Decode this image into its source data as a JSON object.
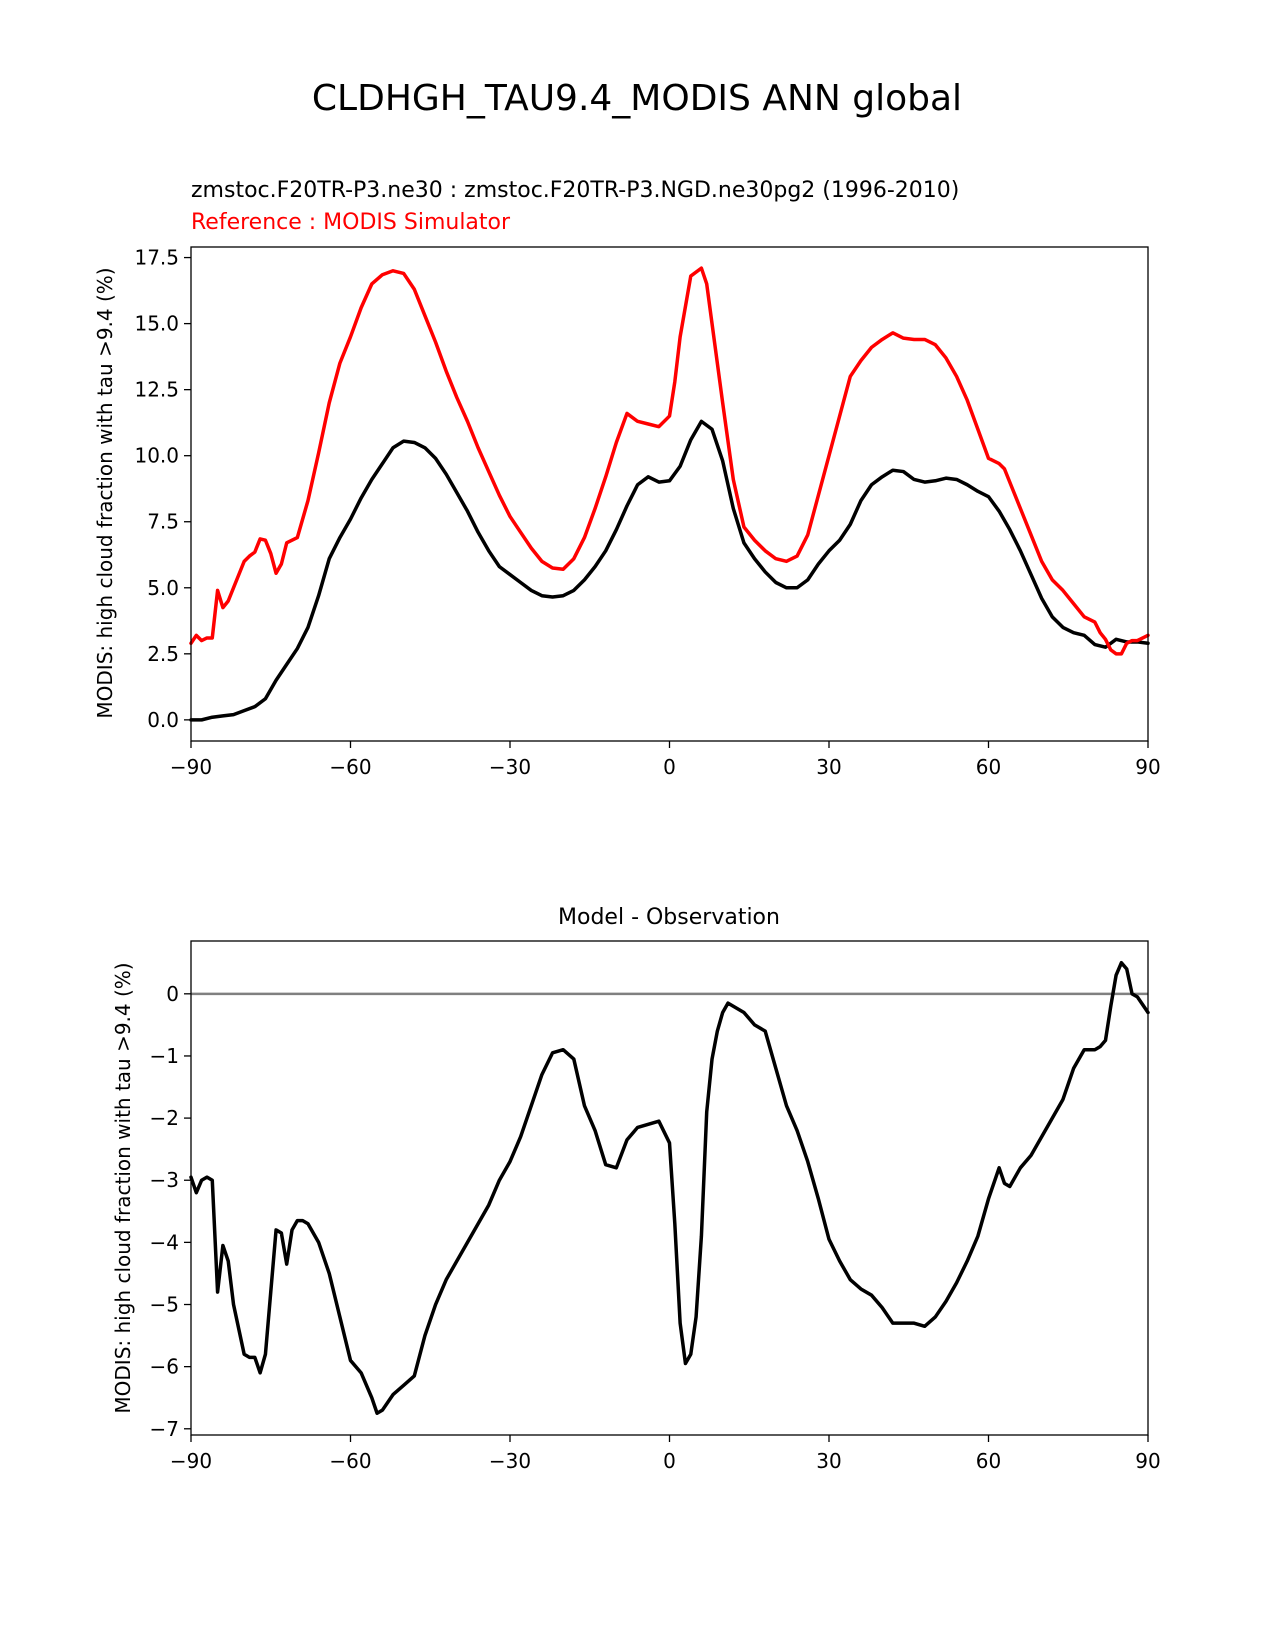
{
  "figure": {
    "title": "CLDHGH_TAU9.4_MODIS ANN global"
  },
  "colors": {
    "test_series": "#000000",
    "reference_series": "#ff0000",
    "zero_line": "#808080",
    "axes": "#000000",
    "background": "#ffffff"
  },
  "chart_data": [
    {
      "type": "line",
      "subtitle_test": "zmstoc.F20TR-P3.ne30 : zmstoc.F20TR-P3.NGD.ne30pg2 (1996-2010)",
      "subtitle_reference": "Reference : MODIS Simulator",
      "xlabel": "",
      "ylabel": "MODIS: high cloud fraction with tau >9.4 (%)",
      "xlim": [
        -90,
        90
      ],
      "ylim": [
        -0.8,
        17.9
      ],
      "xticks": [
        -90,
        -60,
        -30,
        0,
        30,
        60,
        90
      ],
      "xtick_labels": [
        "−90",
        "−60",
        "−30",
        "0",
        "30",
        "60",
        "90"
      ],
      "yticks": [
        0.0,
        2.5,
        5.0,
        7.5,
        10.0,
        12.5,
        15.0,
        17.5
      ],
      "ytick_labels": [
        "0.0",
        "2.5",
        "5.0",
        "7.5",
        "10.0",
        "12.5",
        "15.0",
        "17.5"
      ],
      "grid": false,
      "legend": "none",
      "series": [
        {
          "role": "test",
          "color": "#000000",
          "x": [
            -90,
            -88,
            -86,
            -84,
            -82,
            -80,
            -78,
            -76,
            -74,
            -72,
            -70,
            -68,
            -66,
            -64,
            -62,
            -60,
            -58,
            -56,
            -54,
            -52,
            -50,
            -48,
            -46,
            -44,
            -42,
            -40,
            -38,
            -36,
            -34,
            -32,
            -30,
            -28,
            -26,
            -24,
            -22,
            -20,
            -18,
            -16,
            -14,
            -12,
            -10,
            -8,
            -6,
            -4,
            -2,
            0,
            2,
            4,
            6,
            8,
            10,
            12,
            14,
            16,
            18,
            20,
            22,
            24,
            26,
            28,
            30,
            32,
            34,
            36,
            38,
            40,
            42,
            44,
            46,
            48,
            50,
            52,
            54,
            56,
            58,
            60,
            62,
            64,
            66,
            68,
            70,
            72,
            74,
            76,
            78,
            80,
            82,
            84,
            86,
            88,
            90
          ],
          "y": [
            0.0,
            0.0,
            0.1,
            0.15,
            0.2,
            0.35,
            0.5,
            0.8,
            1.5,
            2.1,
            2.7,
            3.5,
            4.7,
            6.1,
            6.9,
            7.6,
            8.4,
            9.1,
            9.7,
            10.3,
            10.55,
            10.5,
            10.3,
            9.9,
            9.3,
            8.6,
            7.9,
            7.1,
            6.4,
            5.8,
            5.5,
            5.2,
            4.9,
            4.7,
            4.65,
            4.7,
            4.9,
            5.3,
            5.8,
            6.4,
            7.2,
            8.1,
            8.9,
            9.2,
            9.0,
            9.05,
            9.6,
            10.6,
            11.3,
            11.0,
            9.8,
            8.0,
            6.7,
            6.1,
            5.6,
            5.2,
            5.0,
            5.0,
            5.3,
            5.9,
            6.4,
            6.8,
            7.4,
            8.3,
            8.9,
            9.2,
            9.45,
            9.4,
            9.1,
            9.0,
            9.05,
            9.15,
            9.1,
            8.9,
            8.65,
            8.45,
            7.9,
            7.2,
            6.4,
            5.5,
            4.6,
            3.9,
            3.5,
            3.3,
            3.2,
            2.85,
            2.75,
            3.05,
            2.95,
            2.95,
            2.9
          ]
        },
        {
          "role": "reference",
          "color": "#ff0000",
          "x": [
            -90,
            -89,
            -88,
            -87,
            -86,
            -85,
            -84,
            -83,
            -82,
            -80,
            -79,
            -78,
            -77,
            -76,
            -75,
            -74,
            -73,
            -72,
            -70,
            -68,
            -66,
            -64,
            -62,
            -60,
            -58,
            -56,
            -54,
            -52,
            -50,
            -48,
            -46,
            -44,
            -42,
            -40,
            -38,
            -36,
            -34,
            -32,
            -30,
            -28,
            -26,
            -24,
            -22,
            -20,
            -18,
            -16,
            -14,
            -12,
            -10,
            -8,
            -6,
            -4,
            -2,
            0,
            1,
            2,
            4,
            6,
            7,
            8,
            10,
            12,
            14,
            16,
            18,
            20,
            22,
            24,
            26,
            28,
            30,
            32,
            34,
            36,
            38,
            40,
            42,
            44,
            46,
            48,
            50,
            52,
            54,
            56,
            58,
            60,
            62,
            63,
            64,
            66,
            68,
            70,
            72,
            74,
            76,
            78,
            80,
            81,
            82,
            83,
            84,
            85,
            86,
            87,
            88,
            90
          ],
          "y": [
            2.9,
            3.2,
            3.0,
            3.1,
            3.1,
            4.9,
            4.25,
            4.5,
            5.0,
            6.0,
            6.2,
            6.35,
            6.85,
            6.8,
            6.3,
            5.55,
            5.9,
            6.7,
            6.9,
            8.3,
            10.1,
            12.0,
            13.5,
            14.5,
            15.6,
            16.5,
            16.85,
            17.0,
            16.9,
            16.3,
            15.3,
            14.3,
            13.2,
            12.2,
            11.3,
            10.3,
            9.4,
            8.5,
            7.7,
            7.1,
            6.5,
            6.0,
            5.75,
            5.7,
            6.1,
            6.9,
            8.0,
            9.2,
            10.5,
            11.6,
            11.3,
            11.2,
            11.1,
            11.5,
            12.8,
            14.5,
            16.8,
            17.1,
            16.5,
            15.0,
            12.0,
            9.1,
            7.3,
            6.8,
            6.4,
            6.1,
            6.0,
            6.2,
            7.0,
            8.5,
            10.0,
            11.5,
            13.0,
            13.6,
            14.1,
            14.4,
            14.65,
            14.45,
            14.4,
            14.4,
            14.2,
            13.7,
            13.0,
            12.1,
            11.0,
            9.9,
            9.7,
            9.5,
            9.0,
            8.0,
            7.0,
            6.0,
            5.3,
            4.9,
            4.4,
            3.9,
            3.7,
            3.3,
            3.05,
            2.65,
            2.5,
            2.5,
            2.9,
            3.0,
            3.0,
            3.2
          ]
        }
      ]
    },
    {
      "type": "line",
      "title": "Model - Observation",
      "xlabel": "",
      "ylabel": "MODIS: high cloud fraction with tau >9.4 (%)",
      "xlim": [
        -90,
        90
      ],
      "ylim": [
        -7.1,
        0.85
      ],
      "xticks": [
        -90,
        -60,
        -30,
        0,
        30,
        60,
        90
      ],
      "xtick_labels": [
        "−90",
        "−60",
        "−30",
        "0",
        "30",
        "60",
        "90"
      ],
      "yticks": [
        0,
        -1,
        -2,
        -3,
        -4,
        -5,
        -6,
        -7
      ],
      "ytick_labels": [
        "0",
        "−1",
        "−2",
        "−3",
        "−4",
        "−5",
        "−6",
        "−7"
      ],
      "grid": false,
      "legend": "none",
      "zero_line": true,
      "series": [
        {
          "role": "difference",
          "color": "#000000",
          "x": [
            -90,
            -89,
            -88,
            -87,
            -86,
            -85,
            -84,
            -83,
            -82,
            -80,
            -79,
            -78,
            -77,
            -76,
            -75,
            -74,
            -73,
            -72,
            -71,
            -70,
            -69,
            -68,
            -66,
            -64,
            -62,
            -60,
            -58,
            -56,
            -55,
            -54,
            -52,
            -50,
            -48,
            -46,
            -44,
            -42,
            -40,
            -38,
            -36,
            -34,
            -32,
            -30,
            -28,
            -26,
            -24,
            -22,
            -20,
            -18,
            -16,
            -14,
            -12,
            -10,
            -8,
            -6,
            -4,
            -2,
            0,
            1,
            2,
            3,
            4,
            5,
            6,
            7,
            8,
            9,
            10,
            11,
            12,
            14,
            16,
            18,
            20,
            22,
            24,
            26,
            28,
            30,
            32,
            34,
            36,
            38,
            40,
            42,
            44,
            46,
            48,
            50,
            52,
            54,
            56,
            58,
            60,
            62,
            63,
            64,
            66,
            68,
            70,
            72,
            74,
            76,
            78,
            80,
            81,
            82,
            83,
            84,
            85,
            86,
            87,
            88,
            90
          ],
          "y": [
            -2.95,
            -3.2,
            -3.0,
            -2.95,
            -3.0,
            -4.8,
            -4.05,
            -4.3,
            -5.0,
            -5.8,
            -5.85,
            -5.85,
            -6.1,
            -5.8,
            -4.8,
            -3.8,
            -3.85,
            -4.35,
            -3.8,
            -3.65,
            -3.65,
            -3.7,
            -4.0,
            -4.5,
            -5.2,
            -5.9,
            -6.1,
            -6.5,
            -6.75,
            -6.7,
            -6.45,
            -6.3,
            -6.15,
            -5.5,
            -5.0,
            -4.6,
            -4.3,
            -4.0,
            -3.7,
            -3.4,
            -3.0,
            -2.7,
            -2.3,
            -1.8,
            -1.3,
            -0.95,
            -0.9,
            -1.05,
            -1.8,
            -2.2,
            -2.75,
            -2.8,
            -2.35,
            -2.15,
            -2.1,
            -2.05,
            -2.4,
            -3.7,
            -5.3,
            -5.95,
            -5.8,
            -5.2,
            -3.9,
            -1.9,
            -1.05,
            -0.6,
            -0.3,
            -0.15,
            -0.2,
            -0.3,
            -0.5,
            -0.6,
            -1.2,
            -1.8,
            -2.2,
            -2.7,
            -3.3,
            -3.95,
            -4.3,
            -4.6,
            -4.75,
            -4.85,
            -5.05,
            -5.3,
            -5.3,
            -5.3,
            -5.35,
            -5.2,
            -4.95,
            -4.65,
            -4.3,
            -3.9,
            -3.3,
            -2.8,
            -3.05,
            -3.1,
            -2.8,
            -2.6,
            -2.3,
            -2.0,
            -1.7,
            -1.2,
            -0.9,
            -0.9,
            -0.85,
            -0.75,
            -0.2,
            0.3,
            0.5,
            0.4,
            0.0,
            -0.05,
            -0.3
          ]
        }
      ]
    }
  ]
}
